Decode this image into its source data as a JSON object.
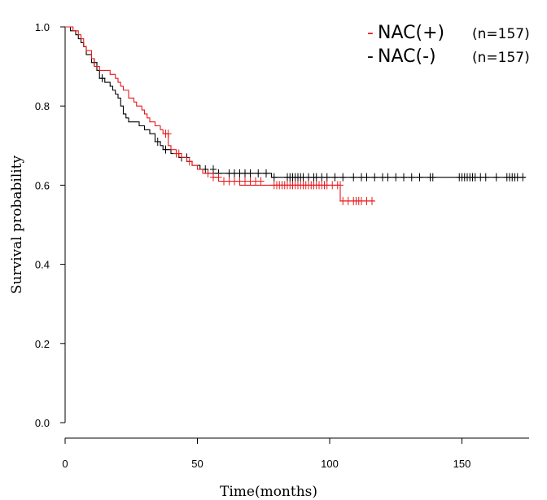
{
  "chart_data": {
    "type": "line",
    "subtype": "kaplan-meier",
    "xlabel": "Time(months)",
    "ylabel": "Survival probability",
    "xlim": [
      0,
      175
    ],
    "ylim": [
      0,
      1
    ],
    "xticks": [
      0,
      50,
      100,
      150
    ],
    "xtick_labels": [
      "0",
      "50",
      "100",
      "150"
    ],
    "yticks": [
      0,
      0.2,
      0.4,
      0.6,
      0.8,
      1.0
    ],
    "ytick_labels": [
      "0.0",
      "0.2",
      "0.4",
      "0.6",
      "0.8",
      "1.0"
    ],
    "legend_position": "top-right",
    "series": [
      {
        "name": "NAC(+)",
        "n_label": "(n=157)",
        "color": "#e8191b",
        "steps": [
          [
            0,
            1.0
          ],
          [
            3,
            0.99
          ],
          [
            5,
            0.98
          ],
          [
            6,
            0.97
          ],
          [
            7,
            0.95
          ],
          [
            8,
            0.94
          ],
          [
            10,
            0.92
          ],
          [
            11,
            0.9
          ],
          [
            13,
            0.89
          ],
          [
            17,
            0.88
          ],
          [
            19,
            0.87
          ],
          [
            20,
            0.86
          ],
          [
            21,
            0.85
          ],
          [
            22,
            0.84
          ],
          [
            24,
            0.82
          ],
          [
            26,
            0.81
          ],
          [
            27,
            0.8
          ],
          [
            29,
            0.79
          ],
          [
            30,
            0.78
          ],
          [
            31,
            0.77
          ],
          [
            32,
            0.76
          ],
          [
            34,
            0.75
          ],
          [
            36,
            0.74
          ],
          [
            37,
            0.73
          ],
          [
            39,
            0.7
          ],
          [
            40,
            0.69
          ],
          [
            42,
            0.68
          ],
          [
            44,
            0.67
          ],
          [
            46,
            0.66
          ],
          [
            48,
            0.65
          ],
          [
            50,
            0.64
          ],
          [
            52,
            0.63
          ],
          [
            56,
            0.62
          ],
          [
            58,
            0.61
          ],
          [
            66,
            0.6
          ],
          [
            104,
            0.56
          ],
          [
            117,
            0.56
          ]
        ],
        "censored": [
          [
            38,
            0.73
          ],
          [
            39,
            0.73
          ],
          [
            42,
            0.68
          ],
          [
            43,
            0.68
          ],
          [
            47,
            0.66
          ],
          [
            54,
            0.63
          ],
          [
            56,
            0.62
          ],
          [
            58,
            0.62
          ],
          [
            60,
            0.61
          ],
          [
            62,
            0.61
          ],
          [
            64,
            0.61
          ],
          [
            66,
            0.61
          ],
          [
            68,
            0.61
          ],
          [
            70,
            0.61
          ],
          [
            72,
            0.61
          ],
          [
            74,
            0.61
          ],
          [
            79,
            0.6
          ],
          [
            80,
            0.6
          ],
          [
            81,
            0.6
          ],
          [
            82,
            0.6
          ],
          [
            83,
            0.6
          ],
          [
            84,
            0.6
          ],
          [
            85,
            0.6
          ],
          [
            86,
            0.6
          ],
          [
            87,
            0.6
          ],
          [
            88,
            0.6
          ],
          [
            89,
            0.6
          ],
          [
            90,
            0.6
          ],
          [
            91,
            0.6
          ],
          [
            92,
            0.6
          ],
          [
            93,
            0.6
          ],
          [
            94,
            0.6
          ],
          [
            95,
            0.6
          ],
          [
            96,
            0.6
          ],
          [
            97,
            0.6
          ],
          [
            98,
            0.6
          ],
          [
            99,
            0.6
          ],
          [
            101,
            0.6
          ],
          [
            103,
            0.6
          ],
          [
            104,
            0.6
          ],
          [
            105,
            0.56
          ],
          [
            107,
            0.56
          ],
          [
            109,
            0.56
          ],
          [
            110,
            0.56
          ],
          [
            111,
            0.56
          ],
          [
            112,
            0.56
          ],
          [
            114,
            0.56
          ],
          [
            116,
            0.56
          ]
        ]
      },
      {
        "name": "NAC(-)",
        "n_label": "(n=157)",
        "color": "#000000",
        "steps": [
          [
            0,
            1.0
          ],
          [
            2,
            0.99
          ],
          [
            4,
            0.98
          ],
          [
            5,
            0.97
          ],
          [
            6,
            0.96
          ],
          [
            7,
            0.95
          ],
          [
            8,
            0.93
          ],
          [
            10,
            0.91
          ],
          [
            12,
            0.89
          ],
          [
            13,
            0.87
          ],
          [
            15,
            0.86
          ],
          [
            17,
            0.85
          ],
          [
            18,
            0.84
          ],
          [
            19,
            0.83
          ],
          [
            20,
            0.82
          ],
          [
            21,
            0.8
          ],
          [
            22,
            0.78
          ],
          [
            23,
            0.77
          ],
          [
            24,
            0.76
          ],
          [
            28,
            0.75
          ],
          [
            30,
            0.74
          ],
          [
            32,
            0.73
          ],
          [
            34,
            0.71
          ],
          [
            36,
            0.7
          ],
          [
            37,
            0.69
          ],
          [
            40,
            0.68
          ],
          [
            43,
            0.67
          ],
          [
            46,
            0.66
          ],
          [
            48,
            0.65
          ],
          [
            51,
            0.64
          ],
          [
            54,
            0.63
          ],
          [
            78,
            0.62
          ],
          [
            174,
            0.62
          ]
        ],
        "censored": [
          [
            11,
            0.91
          ],
          [
            14,
            0.87
          ],
          [
            35,
            0.71
          ],
          [
            38,
            0.69
          ],
          [
            42,
            0.68
          ],
          [
            44,
            0.67
          ],
          [
            46,
            0.67
          ],
          [
            53,
            0.64
          ],
          [
            56,
            0.64
          ],
          [
            58,
            0.63
          ],
          [
            62,
            0.63
          ],
          [
            64,
            0.63
          ],
          [
            66,
            0.63
          ],
          [
            68,
            0.63
          ],
          [
            70,
            0.63
          ],
          [
            73,
            0.63
          ],
          [
            76,
            0.63
          ],
          [
            79,
            0.62
          ],
          [
            84,
            0.62
          ],
          [
            85,
            0.62
          ],
          [
            86,
            0.62
          ],
          [
            87,
            0.62
          ],
          [
            88,
            0.62
          ],
          [
            89,
            0.62
          ],
          [
            90,
            0.62
          ],
          [
            92,
            0.62
          ],
          [
            94,
            0.62
          ],
          [
            95,
            0.62
          ],
          [
            97,
            0.62
          ],
          [
            99,
            0.62
          ],
          [
            102,
            0.62
          ],
          [
            105,
            0.62
          ],
          [
            109,
            0.62
          ],
          [
            112,
            0.62
          ],
          [
            114,
            0.62
          ],
          [
            117,
            0.62
          ],
          [
            120,
            0.62
          ],
          [
            122,
            0.62
          ],
          [
            125,
            0.62
          ],
          [
            128,
            0.62
          ],
          [
            131,
            0.62
          ],
          [
            134,
            0.62
          ],
          [
            138,
            0.62
          ],
          [
            139,
            0.62
          ],
          [
            149,
            0.62
          ],
          [
            150,
            0.62
          ],
          [
            151,
            0.62
          ],
          [
            152,
            0.62
          ],
          [
            153,
            0.62
          ],
          [
            154,
            0.62
          ],
          [
            155,
            0.62
          ],
          [
            157,
            0.62
          ],
          [
            159,
            0.62
          ],
          [
            163,
            0.62
          ],
          [
            167,
            0.62
          ],
          [
            168,
            0.62
          ],
          [
            169,
            0.62
          ],
          [
            170,
            0.62
          ],
          [
            171,
            0.62
          ],
          [
            173,
            0.62
          ]
        ]
      }
    ]
  }
}
